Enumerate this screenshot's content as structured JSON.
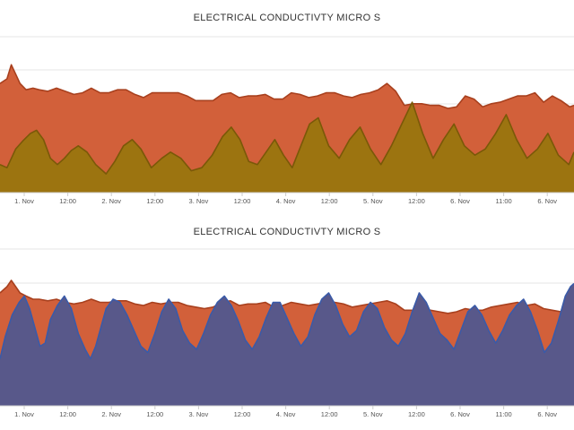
{
  "chart_data": [
    {
      "type": "area",
      "title": "ELECTRICAL CONDUCTIVTY MICRO S",
      "xlabel": "",
      "ylabel": "",
      "grid": true,
      "legend": "none",
      "x_ticks": [
        "1. Nov",
        "12:00",
        "2. Nov",
        "12:00",
        "3. Nov",
        "12:00",
        "4. Nov",
        "12:00",
        "5. Nov",
        "12:00",
        "6. Nov",
        "11:00",
        "6. Nov"
      ],
      "x_range_days": [
        0.7,
        7.3
      ],
      "y_range": [
        0,
        100
      ],
      "series": [
        {
          "color": "#d2603a",
          "line_color": "#a8401e",
          "x": [
            0.7,
            0.78,
            0.83,
            0.88,
            0.93,
            1.0,
            1.08,
            1.15,
            1.25,
            1.35,
            1.45,
            1.55,
            1.65,
            1.75,
            1.85,
            1.95,
            2.05,
            2.15,
            2.25,
            2.35,
            2.45,
            2.55,
            2.65,
            2.75,
            2.85,
            2.95,
            3.05,
            3.15,
            3.25,
            3.35,
            3.45,
            3.55,
            3.65,
            3.75,
            3.85,
            3.95,
            4.05,
            4.15,
            4.25,
            4.35,
            4.45,
            4.55,
            4.65,
            4.75,
            4.85,
            4.95,
            5.05,
            5.15,
            5.25,
            5.35,
            5.45,
            5.55,
            5.65,
            5.75,
            5.85,
            5.95,
            6.05,
            6.15,
            6.25,
            6.35,
            6.45,
            6.55,
            6.65,
            6.75,
            6.85,
            6.95,
            7.05,
            7.15,
            7.25,
            7.3
          ],
          "values": [
            70,
            73,
            82,
            76,
            70,
            66,
            67,
            66,
            65,
            67,
            65,
            63,
            64,
            67,
            64,
            64,
            66,
            66,
            63,
            61,
            64,
            64,
            64,
            64,
            62,
            59,
            59,
            59,
            63,
            64,
            61,
            62,
            62,
            63,
            60,
            60,
            64,
            63,
            61,
            62,
            64,
            64,
            62,
            61,
            63,
            64,
            66,
            70,
            65,
            56,
            57,
            57,
            56,
            56,
            54,
            55,
            62,
            60,
            55,
            57,
            58,
            60,
            62,
            62,
            64,
            58,
            62,
            59,
            55,
            56
          ]
        },
        {
          "color": "#9c7410",
          "line_color": "#7a5808",
          "x": [
            0.7,
            0.78,
            0.88,
            0.96,
            1.05,
            1.12,
            1.2,
            1.28,
            1.36,
            1.44,
            1.52,
            1.6,
            1.7,
            1.8,
            1.92,
            2.02,
            2.12,
            2.22,
            2.32,
            2.44,
            2.56,
            2.66,
            2.78,
            2.9,
            3.02,
            3.14,
            3.26,
            3.36,
            3.46,
            3.56,
            3.66,
            3.76,
            3.86,
            3.96,
            4.06,
            4.16,
            4.26,
            4.36,
            4.48,
            4.6,
            4.72,
            4.84,
            4.96,
            5.08,
            5.2,
            5.32,
            5.44,
            5.56,
            5.68,
            5.8,
            5.92,
            6.04,
            6.16,
            6.28,
            6.4,
            6.52,
            6.64,
            6.76,
            6.88,
            7.0,
            7.12,
            7.24,
            7.3
          ],
          "values": [
            18,
            16,
            28,
            33,
            38,
            40,
            34,
            22,
            18,
            22,
            27,
            30,
            26,
            18,
            12,
            20,
            30,
            34,
            28,
            16,
            22,
            26,
            22,
            14,
            16,
            24,
            36,
            42,
            34,
            20,
            18,
            26,
            34,
            24,
            16,
            30,
            44,
            48,
            30,
            22,
            34,
            42,
            28,
            18,
            30,
            44,
            58,
            38,
            22,
            34,
            44,
            30,
            24,
            28,
            38,
            50,
            34,
            22,
            28,
            38,
            24,
            18,
            26
          ]
        }
      ]
    },
    {
      "type": "area",
      "title": "ELECTRICAL CONDUCTIVTY MICRO S",
      "xlabel": "",
      "ylabel": "",
      "grid": true,
      "legend": "none",
      "x_ticks": [
        "1. Nov",
        "12:00",
        "2. Nov",
        "12:00",
        "3. Nov",
        "12:00",
        "4. Nov",
        "12:00",
        "5. Nov",
        "12:00",
        "6. Nov",
        "11:00",
        "6. Nov"
      ],
      "x_range_days": [
        0.7,
        7.3
      ],
      "y_range": [
        0,
        100
      ],
      "series": [
        {
          "color": "#d2603a",
          "line_color": "#a8401e",
          "x": [
            0.7,
            0.78,
            0.83,
            0.88,
            0.93,
            1.0,
            1.08,
            1.15,
            1.25,
            1.35,
            1.45,
            1.55,
            1.65,
            1.75,
            1.85,
            1.95,
            2.05,
            2.15,
            2.25,
            2.35,
            2.45,
            2.55,
            2.65,
            2.75,
            2.85,
            2.95,
            3.05,
            3.15,
            3.25,
            3.35,
            3.45,
            3.55,
            3.65,
            3.75,
            3.85,
            3.95,
            4.05,
            4.15,
            4.25,
            4.35,
            4.45,
            4.55,
            4.65,
            4.75,
            4.85,
            4.95,
            5.05,
            5.15,
            5.25,
            5.35,
            5.45,
            5.55,
            5.65,
            5.75,
            5.85,
            5.95,
            6.05,
            6.15,
            6.25,
            6.35,
            6.45,
            6.55,
            6.65,
            6.75,
            6.85,
            6.95,
            7.05,
            7.15,
            7.25,
            7.3
          ],
          "values": [
            72,
            76,
            80,
            76,
            72,
            70,
            68,
            68,
            67,
            68,
            66,
            65,
            66,
            68,
            66,
            66,
            67,
            67,
            65,
            64,
            66,
            65,
            66,
            66,
            64,
            63,
            62,
            63,
            66,
            67,
            64,
            65,
            65,
            66,
            63,
            64,
            66,
            65,
            64,
            65,
            66,
            66,
            65,
            63,
            64,
            65,
            66,
            67,
            65,
            61,
            61,
            62,
            61,
            60,
            59,
            60,
            62,
            61,
            61,
            63,
            64,
            65,
            66,
            64,
            65,
            62,
            61,
            60,
            60,
            62
          ]
        },
        {
          "color": "#58588a",
          "line_color": "#3a5aa8",
          "x": [
            0.7,
            0.76,
            0.84,
            0.92,
            0.98,
            1.04,
            1.1,
            1.16,
            1.22,
            1.28,
            1.36,
            1.44,
            1.52,
            1.6,
            1.68,
            1.74,
            1.8,
            1.86,
            1.92,
            2.0,
            2.08,
            2.16,
            2.24,
            2.32,
            2.4,
            2.48,
            2.56,
            2.64,
            2.72,
            2.8,
            2.88,
            2.96,
            3.04,
            3.12,
            3.2,
            3.28,
            3.36,
            3.44,
            3.52,
            3.6,
            3.68,
            3.76,
            3.84,
            3.92,
            4.0,
            4.08,
            4.16,
            4.24,
            4.32,
            4.4,
            4.48,
            4.56,
            4.64,
            4.72,
            4.8,
            4.88,
            4.96,
            5.04,
            5.12,
            5.2,
            5.28,
            5.36,
            5.44,
            5.52,
            5.6,
            5.68,
            5.76,
            5.84,
            5.92,
            6.0,
            6.08,
            6.16,
            6.24,
            6.32,
            6.4,
            6.48,
            6.56,
            6.64,
            6.72,
            6.8,
            6.88,
            6.96,
            7.04,
            7.12,
            7.2,
            7.26,
            7.3
          ],
          "values": [
            30,
            44,
            58,
            66,
            70,
            62,
            50,
            38,
            40,
            55,
            64,
            70,
            62,
            46,
            36,
            30,
            38,
            50,
            62,
            68,
            66,
            58,
            48,
            38,
            34,
            46,
            60,
            68,
            62,
            48,
            40,
            36,
            46,
            58,
            66,
            70,
            64,
            54,
            42,
            36,
            44,
            56,
            66,
            66,
            56,
            46,
            38,
            44,
            58,
            68,
            72,
            64,
            52,
            44,
            48,
            60,
            66,
            62,
            50,
            42,
            38,
            46,
            60,
            72,
            66,
            56,
            46,
            42,
            36,
            48,
            60,
            64,
            58,
            48,
            40,
            48,
            58,
            64,
            68,
            60,
            48,
            34,
            40,
            54,
            70,
            76,
            78
          ]
        }
      ]
    }
  ]
}
